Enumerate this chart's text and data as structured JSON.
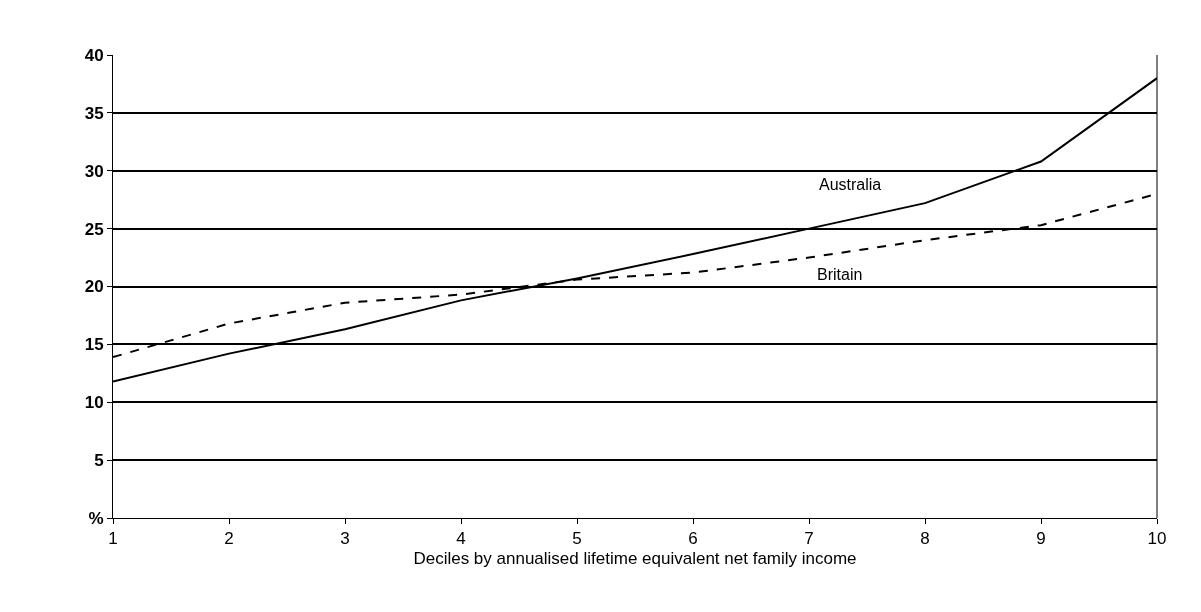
{
  "chart_data": {
    "type": "line",
    "xlabel": "Deciles by annualised lifetime equivalent net family income",
    "x": [
      1,
      2,
      3,
      4,
      5,
      6,
      7,
      8,
      9,
      10
    ],
    "series": [
      {
        "name": "Australia",
        "color": "#000000",
        "line_style": "solid",
        "values": [
          11.8,
          14.2,
          16.3,
          18.8,
          20.7,
          22.8,
          25.0,
          27.2,
          30.8,
          38.0
        ]
      },
      {
        "name": "Britain",
        "color": "#000000",
        "line_style": "dashed",
        "values": [
          13.9,
          16.8,
          18.6,
          19.3,
          20.6,
          21.2,
          22.5,
          24.0,
          25.3,
          28.0
        ]
      }
    ],
    "xlim": [
      1,
      10
    ],
    "xticks": [
      1,
      2,
      3,
      4,
      5,
      6,
      7,
      8,
      9,
      10
    ],
    "ylim": [
      0,
      40
    ],
    "yticks": [
      {
        "value": 0,
        "label": "%"
      },
      5,
      10,
      15,
      20,
      25,
      30,
      35,
      40
    ],
    "grid": "y",
    "legend": false,
    "marker": "none"
  }
}
